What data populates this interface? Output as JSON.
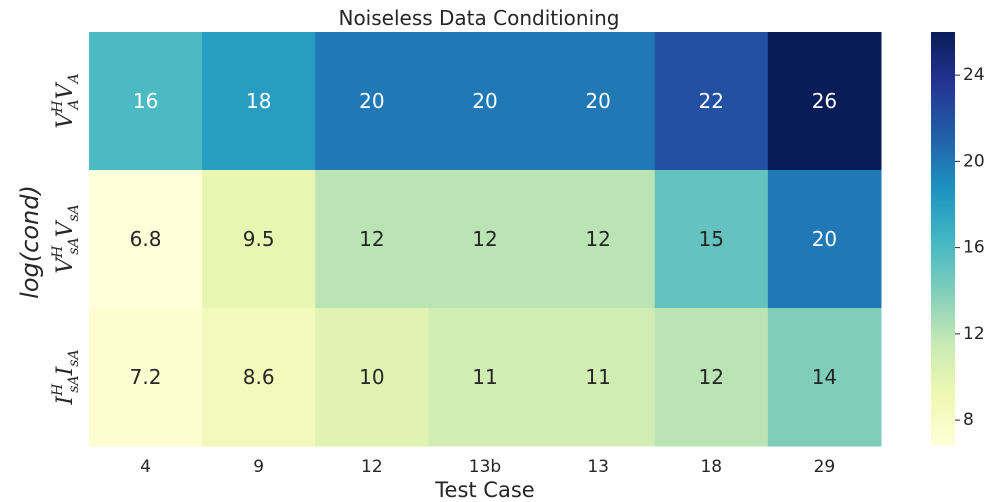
{
  "chart_data": {
    "type": "heatmap",
    "title": "Noiseless Data Conditioning",
    "xlabel": "Test Case",
    "ylabel": "log(cond)",
    "x_categories": [
      "4",
      "9",
      "12",
      "13b",
      "13",
      "18",
      "29"
    ],
    "y_categories": [
      {
        "base": "V",
        "sup": "H",
        "pre": "",
        "post": "V",
        "sub": "A"
      },
      {
        "base": "V",
        "sup": "H",
        "pre": "",
        "post": "V",
        "sub": "sA"
      },
      {
        "base": "I",
        "sup": "H",
        "pre": "",
        "post": "I",
        "sub": "sA"
      }
    ],
    "values": [
      [
        16,
        18,
        20,
        20,
        20,
        22,
        26
      ],
      [
        6.8,
        9.5,
        12,
        12,
        12,
        15,
        20
      ],
      [
        7.2,
        8.6,
        10,
        11,
        11,
        12,
        14
      ]
    ],
    "colorbar": {
      "min": 6.8,
      "max": 26,
      "ticks": [
        "8",
        "12",
        "16",
        "20",
        "24"
      ],
      "colormap": "YlGnBu"
    }
  }
}
